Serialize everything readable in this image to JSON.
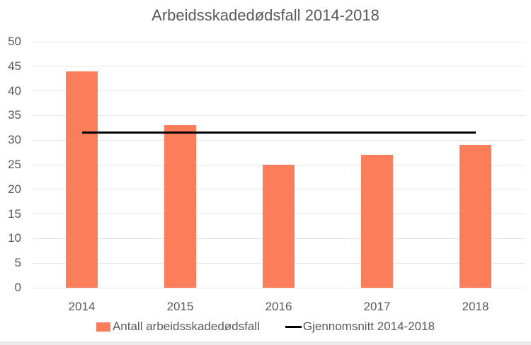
{
  "page": {
    "background": "#FFFFFF",
    "bottom_edge_color": "#ECEAEA"
  },
  "chart_data": {
    "type": "bar",
    "title": "Arbeidsskadedødsfall 2014-2018",
    "categories": [
      "2014",
      "2015",
      "2016",
      "2017",
      "2018"
    ],
    "series": [
      {
        "name": "Antall arbeidsskadedødsfall",
        "type": "bar",
        "values": [
          44,
          33,
          25,
          27,
          29
        ],
        "color": "#FB7D5A"
      },
      {
        "name": "Gjennomsnitt 2014-2018",
        "type": "line",
        "values": [
          31.6,
          31.6,
          31.6,
          31.6,
          31.6
        ],
        "color": "#000000"
      }
    ],
    "average_value": 31.6,
    "xlabel": "",
    "ylabel": "",
    "ylim": [
      0,
      50
    ],
    "yticks": [
      0,
      5,
      10,
      15,
      20,
      25,
      30,
      35,
      40,
      45,
      50
    ],
    "grid": true,
    "gridline_color": "#E6E6E6",
    "text_color": "#595959",
    "legend_position": "bottom"
  }
}
